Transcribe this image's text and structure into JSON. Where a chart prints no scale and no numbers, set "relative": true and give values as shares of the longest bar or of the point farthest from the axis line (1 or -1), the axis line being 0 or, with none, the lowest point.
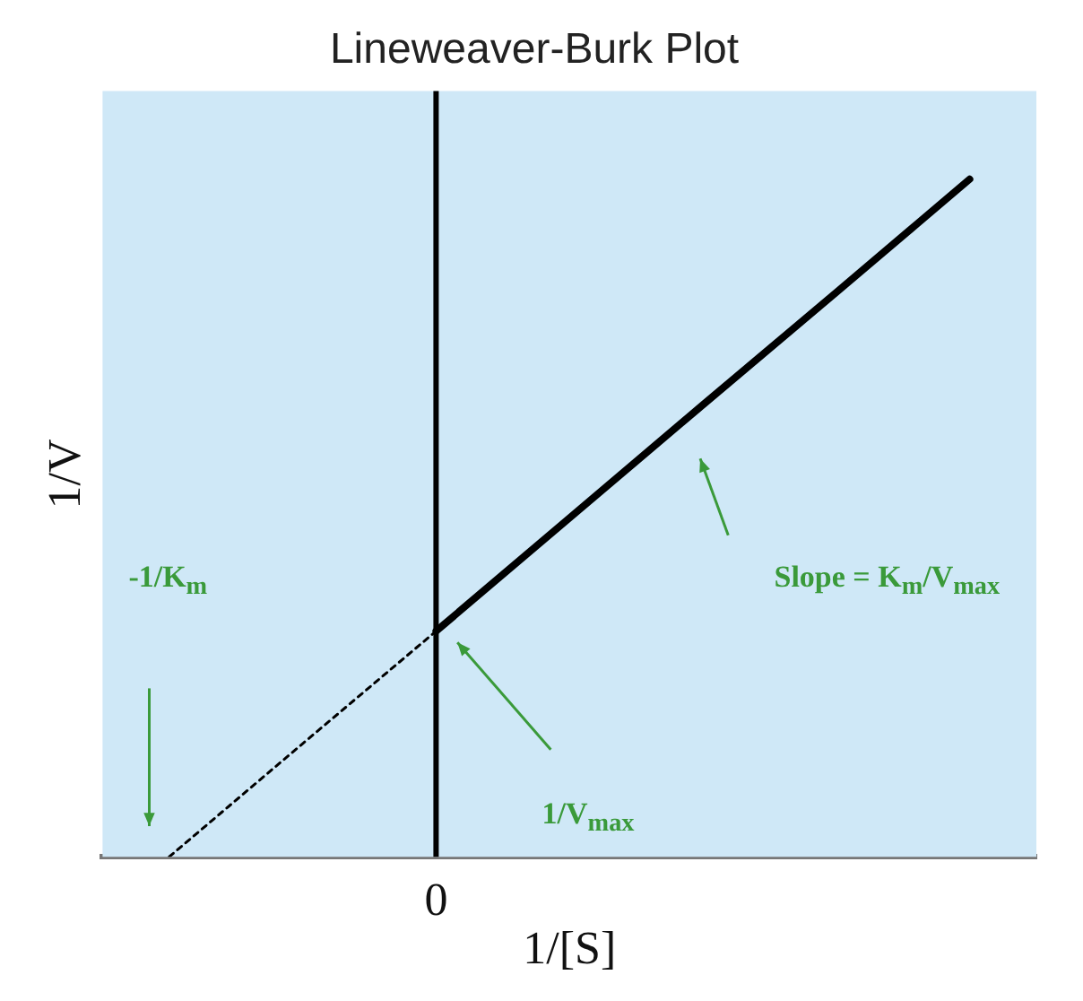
{
  "chart_data": {
    "type": "line",
    "title": "Lineweaver-Burk Plot",
    "xlabel": "1/[S]",
    "ylabel": "1/V",
    "relative": true,
    "categories": [
      null,
      null,
      null,
      null,
      null,
      null,
      null
    ],
    "series": [
      {
        "color": "#000000",
        "values": [
          0,
          0.167,
          0.333,
          null,
          null,
          null,
          null
        ],
        "line_style": "dotted"
      },
      {
        "color": "#000000",
        "values": [
          null,
          null,
          0.333,
          0.5,
          0.667,
          0.833,
          1
        ],
        "line_style": "solid"
      }
    ],
    "tick_labels": false,
    "grid": false,
    "legend": false,
    "marker": "none",
    "annotations": [
      "-1/K$_{m}$",
      "1/V$_{max}$",
      "Slope = K$_{m}$/V$_{max}$",
      "0"
    ]
  }
}
